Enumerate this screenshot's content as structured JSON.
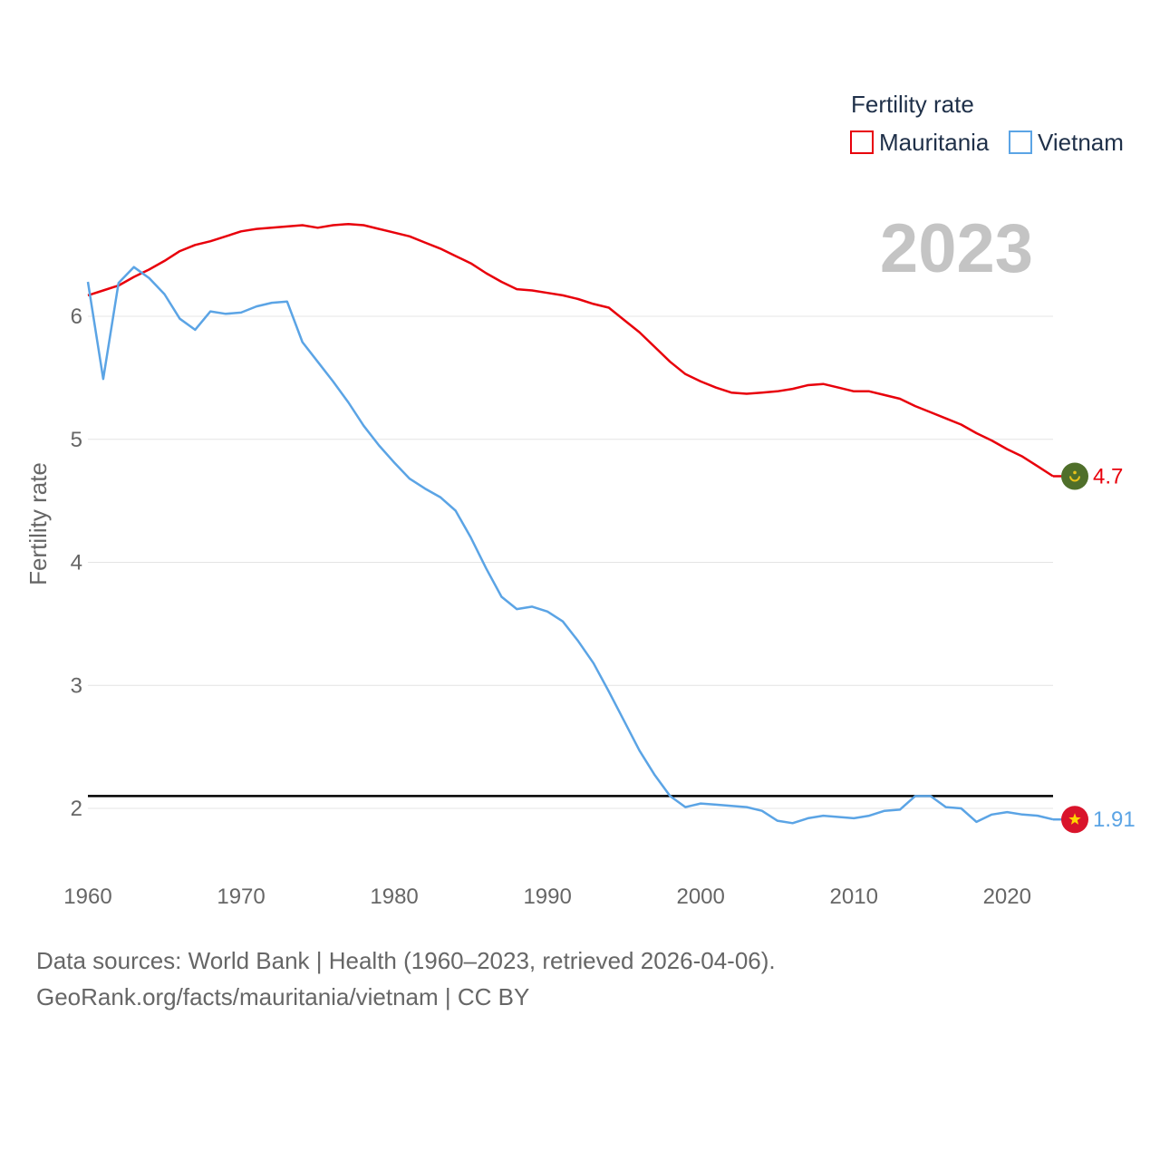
{
  "chart_data": {
    "type": "line",
    "title": "",
    "ylabel": "Fertility rate",
    "xlabel": "",
    "legend_title": "Fertility rate",
    "current_year": "2023",
    "xlim": [
      1960,
      2023
    ],
    "ylim": [
      1.5,
      6.5
    ],
    "x_ticks": [
      1960,
      1970,
      1980,
      1990,
      2000,
      2010,
      2020
    ],
    "y_ticks": [
      2,
      3,
      4,
      5,
      6
    ],
    "reference_line": 2.1,
    "x": [
      1960,
      1961,
      1962,
      1963,
      1964,
      1965,
      1966,
      1967,
      1968,
      1969,
      1970,
      1971,
      1972,
      1973,
      1974,
      1975,
      1976,
      1977,
      1978,
      1979,
      1980,
      1981,
      1982,
      1983,
      1984,
      1985,
      1986,
      1987,
      1988,
      1989,
      1990,
      1991,
      1992,
      1993,
      1994,
      1995,
      1996,
      1997,
      1998,
      1999,
      2000,
      2001,
      2002,
      2003,
      2004,
      2005,
      2006,
      2007,
      2008,
      2009,
      2010,
      2011,
      2012,
      2013,
      2014,
      2015,
      2016,
      2017,
      2018,
      2019,
      2020,
      2021,
      2022,
      2023
    ],
    "series": [
      {
        "name": "Mauritania",
        "color": "#e8000b",
        "end_label": "4.7",
        "flag": "mauritania",
        "values": [
          6.17,
          6.21,
          6.25,
          6.32,
          6.38,
          6.45,
          6.53,
          6.58,
          6.61,
          6.65,
          6.69,
          6.71,
          6.72,
          6.73,
          6.74,
          6.72,
          6.74,
          6.75,
          6.74,
          6.71,
          6.68,
          6.65,
          6.6,
          6.55,
          6.49,
          6.43,
          6.35,
          6.28,
          6.22,
          6.21,
          6.19,
          6.17,
          6.14,
          6.1,
          6.07,
          5.97,
          5.87,
          5.75,
          5.63,
          5.53,
          5.47,
          5.42,
          5.38,
          5.37,
          5.38,
          5.39,
          5.41,
          5.44,
          5.45,
          5.42,
          5.39,
          5.39,
          5.36,
          5.33,
          5.27,
          5.22,
          5.17,
          5.12,
          5.05,
          4.99,
          4.92,
          4.86,
          4.78,
          4.7
        ]
      },
      {
        "name": "Vietnam",
        "color": "#5ba4e5",
        "end_label": "1.91",
        "flag": "vietnam",
        "values": [
          6.28,
          5.49,
          6.27,
          6.4,
          6.31,
          6.18,
          5.98,
          5.89,
          6.04,
          6.02,
          6.03,
          6.08,
          6.11,
          6.12,
          5.79,
          5.63,
          5.47,
          5.3,
          5.11,
          4.95,
          4.81,
          4.68,
          4.6,
          4.53,
          4.42,
          4.2,
          3.95,
          3.72,
          3.62,
          3.64,
          3.6,
          3.52,
          3.36,
          3.18,
          2.95,
          2.71,
          2.47,
          2.27,
          2.1,
          2.01,
          2.04,
          2.03,
          2.02,
          2.01,
          1.98,
          1.9,
          1.88,
          1.92,
          1.94,
          1.93,
          1.92,
          1.94,
          1.98,
          1.99,
          2.1,
          2.1,
          2.01,
          2.0,
          1.89,
          1.95,
          1.97,
          1.95,
          1.94,
          1.91
        ]
      }
    ]
  },
  "source": {
    "line1": "Data sources: World Bank | Health (1960–2023, retrieved 2026-04-06).",
    "line2": "GeoRank.org/facts/mauritania/vietnam | CC BY"
  }
}
